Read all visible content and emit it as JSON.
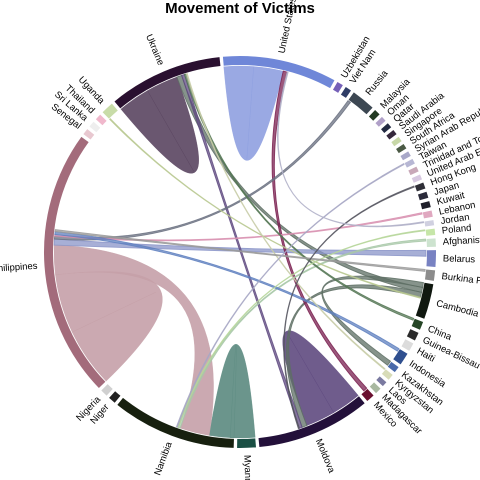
{
  "chart_data": {
    "type": "chord",
    "title": "Movement of Victims",
    "start_angle_deg": -95,
    "segments": [
      {
        "name": "United States",
        "size": 11,
        "color": "#6f87d8"
      },
      {
        "name": "Uzbekistan",
        "size": 0.6,
        "color": "#7560b8"
      },
      {
        "name": "Viet Nam",
        "size": 0.6,
        "color": "#2f3d66"
      },
      {
        "name": "Russia",
        "size": 2.3,
        "color": "#3c4752"
      },
      {
        "name": "Malaysia",
        "size": 0.6,
        "color": "#233b22"
      },
      {
        "name": "Oman",
        "size": 0.5,
        "color": "#b0a0c8"
      },
      {
        "name": "Qatar",
        "size": 0.5,
        "color": "#222a42"
      },
      {
        "name": "Saudi Arabia",
        "size": 0.5,
        "color": "#35283c"
      },
      {
        "name": "Singapore",
        "size": 0.5,
        "color": "#c8d8a8"
      },
      {
        "name": "South Africa",
        "size": 0.5,
        "color": "#4b5a45"
      },
      {
        "name": "Syrian Arab Republic",
        "size": 0.5,
        "color": "#a8a8c8"
      },
      {
        "name": "Taiwan",
        "size": 0.5,
        "color": "#b7b7d4"
      },
      {
        "name": "Trinidad and Tobago",
        "size": 0.5,
        "color": "#c8a8b8"
      },
      {
        "name": "United Arab Emirates",
        "size": 0.5,
        "color": "#d7c8e0"
      },
      {
        "name": "Hong Kong",
        "size": 0.6,
        "color": "#2f2f37"
      },
      {
        "name": "Japan",
        "size": 0.6,
        "color": "#2b2b3b"
      },
      {
        "name": "Kuwait",
        "size": 0.6,
        "color": "#1f1f2a"
      },
      {
        "name": "Lebanon",
        "size": 0.6,
        "color": "#e0a8c0"
      },
      {
        "name": "Jordan",
        "size": 0.5,
        "color": "#d0d0e0"
      },
      {
        "name": "Poland",
        "size": 0.6,
        "color": "#c6e6a8"
      },
      {
        "name": "Afghanistan",
        "size": 0.8,
        "color": "#cde3cf"
      },
      {
        "name": "Belarus",
        "size": 1.6,
        "color": "#7882c2"
      },
      {
        "name": "Burkina Faso",
        "size": 1.0,
        "color": "#8c8c8c"
      },
      {
        "name": "Cambodia",
        "size": 3.4,
        "color": "#101810"
      },
      {
        "name": "China",
        "size": 0.8,
        "color": "#254525"
      },
      {
        "name": "Guinea-Bissau",
        "size": 0.8,
        "color": "#2b2b2b"
      },
      {
        "name": "Haiti",
        "size": 0.8,
        "color": "#dcdcdc"
      },
      {
        "name": "Indonesia",
        "size": 1.2,
        "color": "#2f4f8f"
      },
      {
        "name": "Kazakhstan",
        "size": 0.6,
        "color": "#4a6aaa"
      },
      {
        "name": "Kyrgyzstan",
        "size": 0.6,
        "color": "#d8dcb8"
      },
      {
        "name": "Laos",
        "size": 0.5,
        "color": "#7a7aa0"
      },
      {
        "name": "Madagascar",
        "size": 0.6,
        "color": "#a8b8a0"
      },
      {
        "name": "Mexico",
        "size": 0.8,
        "color": "#6a1030"
      },
      {
        "name": "Moldova",
        "size": 11,
        "color": "#23103a"
      },
      {
        "name": "Myanmar",
        "size": 1.8,
        "color": "#1a4f44"
      },
      {
        "name": "Namibia",
        "size": 12,
        "color": "#17200f"
      },
      {
        "name": "Niger",
        "size": 0.7,
        "color": "#222222"
      },
      {
        "name": "Nigeria",
        "size": 0.7,
        "color": "#d0d0d0"
      },
      {
        "name": "Philippines",
        "size": 26,
        "color": "#a36b7b"
      },
      {
        "name": "Senegal",
        "size": 0.6,
        "color": "#e8c8d0"
      },
      {
        "name": "Sri Lanka",
        "size": 0.6,
        "color": "#eeeeee"
      },
      {
        "name": "Thailand",
        "size": 0.6,
        "color": "#f0b8cc"
      },
      {
        "name": "Uganda",
        "size": 1.2,
        "color": "#c8dca8"
      },
      {
        "name": "Ukraine",
        "size": 11,
        "color": "#2a1030"
      }
    ],
    "flows": [
      {
        "from": "Ukraine",
        "to": "Ukraine",
        "value": 6.5,
        "color": "#5a4560"
      },
      {
        "from": "United States",
        "to": "United States",
        "value": 6.0,
        "color": "#8fa0e0"
      },
      {
        "from": "Philippines",
        "to": "Philippines",
        "value": 12.0,
        "color": "#c5a0a8"
      },
      {
        "from": "Moldova",
        "to": "Moldova",
        "value": 6.0,
        "color": "#5f4a80"
      },
      {
        "from": "Namibia",
        "to": "Myanmar",
        "value": 2.5,
        "color": "#5b8a7f"
      },
      {
        "from": "Namibia",
        "to": "Philippines",
        "value": 3.0,
        "color": "#c5a0a8"
      },
      {
        "from": "Cambodia",
        "to": "Kazakhstan",
        "value": 0.5,
        "color": "#5e6f64"
      },
      {
        "from": "Cambodia",
        "to": "Ukraine",
        "value": 0.5,
        "color": "#5e6f64"
      },
      {
        "from": "Cambodia",
        "to": "Moldova",
        "value": 0.5,
        "color": "#5e6f64"
      },
      {
        "from": "Belarus",
        "to": "Philippines",
        "value": 0.6,
        "color": "#8a94c8"
      },
      {
        "from": "Mexico",
        "to": "United States",
        "value": 0.4,
        "color": "#7a2050"
      },
      {
        "from": "Moldova",
        "to": "Ukraine",
        "value": 0.3,
        "color": "#5f4a80"
      },
      {
        "from": "Russia",
        "to": "Philippines",
        "value": 0.3,
        "color": "#6a7080"
      },
      {
        "from": "Afghanistan",
        "to": "Namibia",
        "value": 0.2,
        "color": "#a8c8a8"
      },
      {
        "from": "Lebanon",
        "to": "Philippines",
        "value": 0.15,
        "color": "#d890b0"
      },
      {
        "from": "Uganda",
        "to": "Cambodia",
        "value": 0.1,
        "color": "#b8c890"
      },
      {
        "from": "Indonesia",
        "to": "Philippines",
        "value": 0.3,
        "color": "#5f80bf"
      },
      {
        "from": "China",
        "to": "Ukraine",
        "value": 0.2,
        "color": "#557755"
      },
      {
        "from": "Poland",
        "to": "Namibia",
        "value": 0.1,
        "color": "#b6d69a"
      },
      {
        "from": "Kyrgyzstan",
        "to": "Ukraine",
        "value": 0.1,
        "color": "#c8cca8"
      },
      {
        "from": "Burkina Faso",
        "to": "Philippines",
        "value": 0.2,
        "color": "#9a9a9a"
      },
      {
        "from": "Hong Kong",
        "to": "Moldova",
        "value": 0.1,
        "color": "#55555f"
      },
      {
        "from": "Taiwan",
        "to": "Namibia",
        "value": 0.1,
        "color": "#a7a7c4"
      },
      {
        "from": "Jordan",
        "to": "United States",
        "value": 0.1,
        "color": "#b0b0c8"
      }
    ]
  }
}
